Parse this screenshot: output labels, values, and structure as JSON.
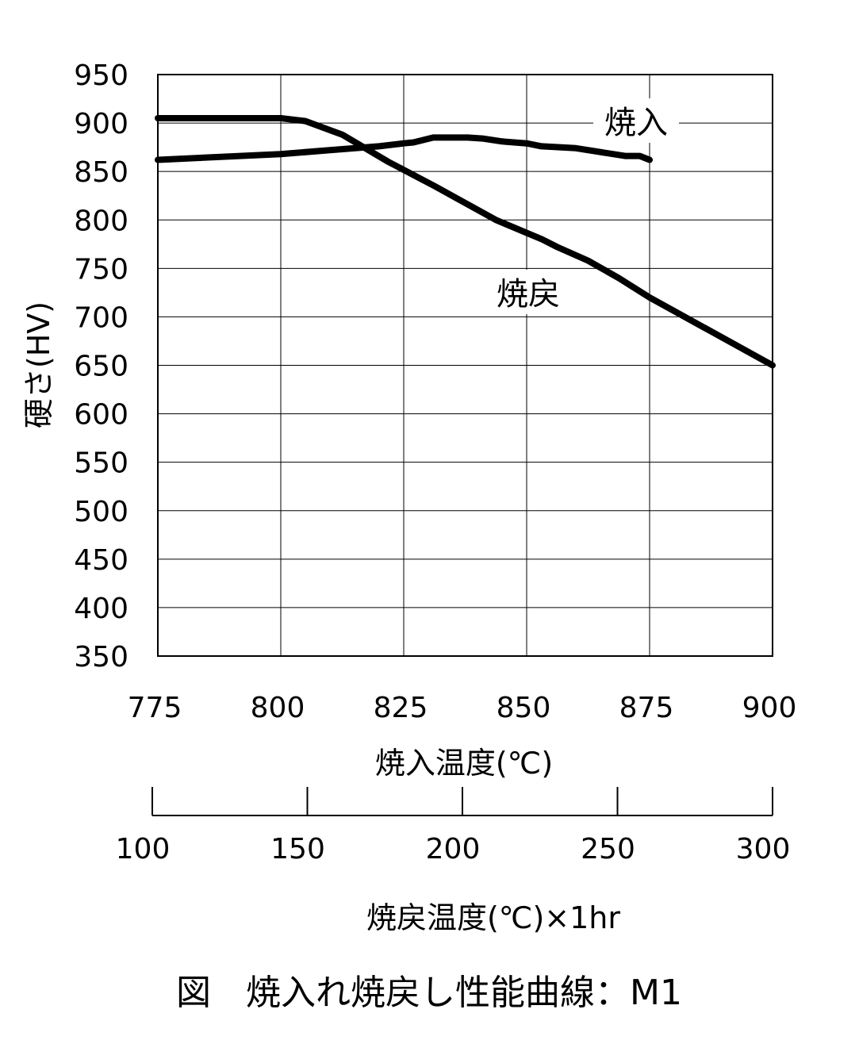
{
  "chart_data": {
    "type": "line",
    "title": "",
    "ylabel": "硬さ(HV)",
    "xlabel": "焼入温度(℃)",
    "x2label": "焼戻温度(℃)×1hr",
    "caption": "図　焼入れ焼戻し性能曲線：M1",
    "xlim": [
      775,
      900
    ],
    "ylim": [
      350,
      950
    ],
    "x2lim": [
      100,
      300
    ],
    "xticks": [
      775,
      800,
      825,
      850,
      875,
      900
    ],
    "yticks": [
      950,
      900,
      850,
      800,
      750,
      700,
      650,
      600,
      550,
      500,
      450,
      400,
      350
    ],
    "x2ticks": [
      100,
      150,
      200,
      250,
      300
    ],
    "grid": true,
    "series": [
      {
        "name": "焼入",
        "axis": "x",
        "color": "#000000",
        "x": [
          775,
          800,
          810,
          820,
          825,
          827,
          831,
          838,
          841,
          845,
          850,
          853,
          860,
          865,
          870,
          873,
          875
        ],
        "y": [
          862,
          868,
          872,
          876,
          879,
          880,
          885,
          885,
          884,
          881,
          879,
          876,
          874,
          870,
          866,
          866,
          862
        ]
      },
      {
        "name": "焼戻",
        "axis": "x2",
        "color": "#000000",
        "x": [
          100,
          140,
          148,
          160,
          175,
          190,
          210,
          225,
          230,
          240,
          250,
          260,
          300
        ],
        "y": [
          905,
          905,
          902,
          888,
          860,
          835,
          800,
          780,
          772,
          758,
          740,
          720,
          650
        ]
      }
    ],
    "annotations": [
      {
        "series": 0,
        "text": "焼入"
      },
      {
        "series": 1,
        "text": "焼戻"
      }
    ]
  }
}
